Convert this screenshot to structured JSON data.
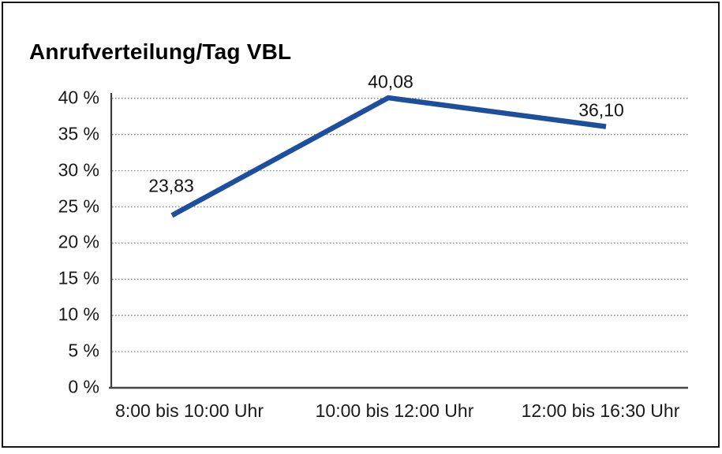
{
  "chart_data": {
    "type": "line",
    "title": "Anrufverteilung/Tag VBL",
    "categories": [
      "8:00 bis 10:00 Uhr",
      "10:00 bis 12:00 Uhr",
      "12:00 bis 16:30 Uhr"
    ],
    "values": [
      23.83,
      40.08,
      36.1
    ],
    "value_labels": [
      "23,83",
      "40,08",
      "36,10"
    ],
    "xlabel": "",
    "ylabel": "",
    "ylim": [
      0,
      40
    ],
    "y_tick_step": 5,
    "y_ticks": [
      {
        "value": 0,
        "label": "0 %"
      },
      {
        "value": 5,
        "label": "5 %"
      },
      {
        "value": 10,
        "label": "10 %"
      },
      {
        "value": 15,
        "label": "15 %"
      },
      {
        "value": 20,
        "label": "20 %"
      },
      {
        "value": 25,
        "label": "25 %"
      },
      {
        "value": 30,
        "label": "30 %"
      },
      {
        "value": 35,
        "label": "35 %"
      },
      {
        "value": 40,
        "label": "40 %"
      }
    ],
    "grid": "horizontal-dotted",
    "legend_position": "none",
    "line_color": "#1d4f9e",
    "gridline_color": "#8a8a8a",
    "axis_color": "#454545",
    "text_color": "#1a1a1a",
    "frame_color": "#161616"
  }
}
